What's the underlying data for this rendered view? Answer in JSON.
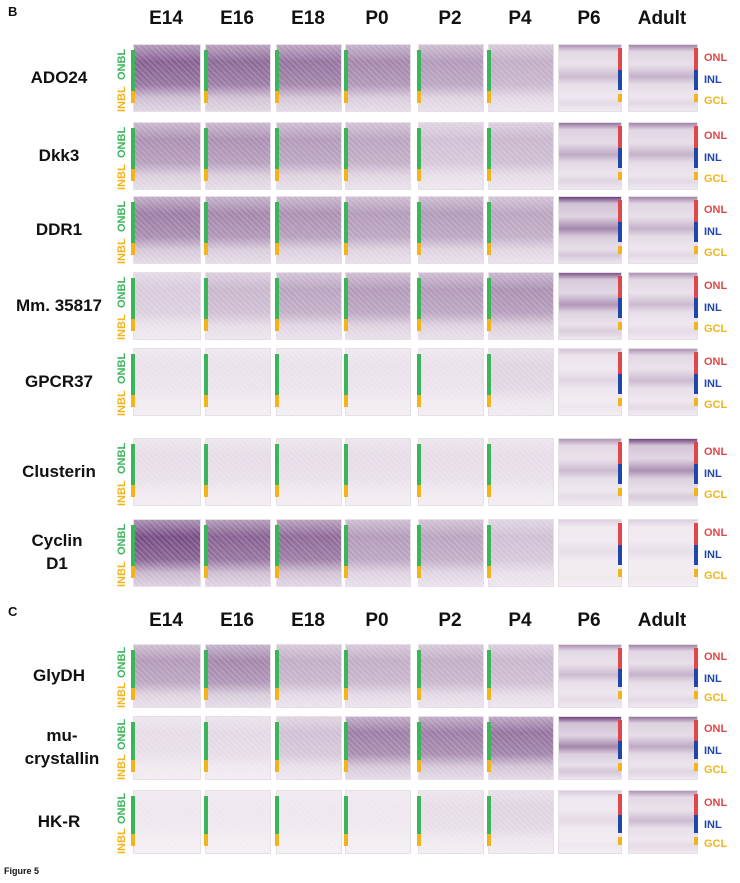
{
  "figure_label": "Figure 5",
  "colors": {
    "onbl_green": "#3cb55a",
    "inbl_yellow": "#f2b41c",
    "onl_red": "#e0474a",
    "inl_blue": "#1f46a8",
    "gcl_yellow": "#f2b41c"
  },
  "panels": [
    {
      "letter": "B",
      "stages": [
        "E14",
        "E16",
        "E18",
        "P0",
        "P2",
        "P4",
        "P6",
        "Adult"
      ],
      "genes": [
        {
          "label": "ADO24",
          "intensity": [
            0.75,
            0.7,
            0.65,
            0.55,
            0.45,
            0.35,
            0.3,
            0.35
          ]
        },
        {
          "label": "Dkk3",
          "intensity": [
            0.5,
            0.5,
            0.45,
            0.4,
            0.25,
            0.3,
            0.4,
            0.35
          ]
        },
        {
          "label": "DDR1",
          "intensity": [
            0.6,
            0.55,
            0.5,
            0.45,
            0.45,
            0.4,
            0.6,
            0.35
          ]
        },
        {
          "label": "Mm. 35817",
          "intensity": [
            0.2,
            0.3,
            0.4,
            0.45,
            0.45,
            0.5,
            0.5,
            0.3
          ]
        },
        {
          "label": "GPCR37",
          "intensity": [
            0.08,
            0.08,
            0.08,
            0.08,
            0.08,
            0.15,
            0.15,
            0.3
          ]
        },
        {
          "label": "Clusterin",
          "intensity": [
            0.1,
            0.1,
            0.1,
            0.1,
            0.1,
            0.1,
            0.3,
            0.55
          ]
        },
        {
          "label": "Cyclin D1",
          "intensity": [
            0.85,
            0.75,
            0.7,
            0.45,
            0.4,
            0.25,
            0.1,
            0.1
          ]
        }
      ]
    },
    {
      "letter": "C",
      "stages": [
        "E14",
        "E16",
        "E18",
        "P0",
        "P2",
        "P4",
        "P6",
        "Adult"
      ],
      "genes": [
        {
          "label": "GlyDH",
          "intensity": [
            0.45,
            0.55,
            0.35,
            0.35,
            0.35,
            0.3,
            0.3,
            0.35
          ]
        },
        {
          "label": "mu-crystallin",
          "intensity": [
            0.1,
            0.12,
            0.25,
            0.6,
            0.6,
            0.65,
            0.6,
            0.4
          ]
        },
        {
          "label": "HK-R",
          "intensity": [
            0.05,
            0.05,
            0.05,
            0.05,
            0.1,
            0.15,
            0.12,
            0.3
          ]
        }
      ]
    }
  ],
  "layer_labels": {
    "onbl": "ONBL",
    "inbl": "INBL",
    "onl": "ONL",
    "inl": "INL",
    "gcl": "GCL"
  }
}
